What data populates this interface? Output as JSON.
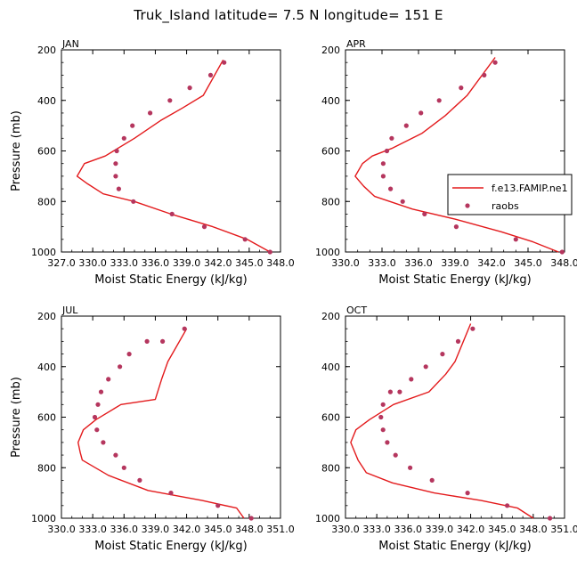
{
  "figure_title": "Truk_Island   latitude= 7.5 N longitude= 151 E",
  "colors": {
    "model": "#e31a1c",
    "obs": "#b5365e",
    "axis": "#000000"
  },
  "legend": {
    "model_label": "f.e13.FAMIP.ne1",
    "obs_label": "raobs",
    "placement": "right-of-top-right-panel"
  },
  "chart_data": [
    {
      "type": "line",
      "panel": "JAN",
      "title": "JAN",
      "xlabel": "Moist Static Energy (kJ/kg)",
      "ylabel": "Pressure (mb)",
      "xlim": [
        327.0,
        348.0
      ],
      "ylim": [
        1000,
        200
      ],
      "xticks": [
        327.0,
        330.0,
        333.0,
        336.0,
        339.0,
        342.0,
        345.0,
        348.0
      ],
      "xtick_labels": [
        "327.0",
        "330.0",
        "333.0",
        "336.0",
        "339.0",
        "342.0",
        "345.0",
        "348.0"
      ],
      "yticks": [
        200,
        400,
        600,
        800,
        1000
      ],
      "ytick_labels": [
        "200",
        "400",
        "600",
        "800",
        "1000"
      ],
      "series": [
        {
          "name": "f.e13.FAMIP.ne1",
          "style": "line",
          "x": [
            347.0,
            344.8,
            341.5,
            337.5,
            334.0,
            331.0,
            329.5,
            328.5,
            329.2,
            331.2,
            334.0,
            336.5,
            338.6,
            340.6,
            342.5
          ],
          "y": [
            1000,
            950,
            900,
            850,
            800,
            770,
            730,
            700,
            650,
            620,
            550,
            480,
            430,
            380,
            240
          ]
        },
        {
          "name": "raobs",
          "style": "markers",
          "x": [
            347.0,
            344.6,
            340.7,
            337.6,
            333.9,
            332.5,
            332.2,
            332.2,
            332.3,
            333.0,
            333.8,
            335.5,
            337.4,
            339.3,
            341.3,
            342.6
          ],
          "y": [
            1000,
            950,
            900,
            850,
            800,
            750,
            700,
            650,
            600,
            550,
            500,
            450,
            400,
            350,
            300,
            250
          ]
        }
      ]
    },
    {
      "type": "line",
      "panel": "APR",
      "title": "APR",
      "xlabel": "Moist Static Energy (kJ/kg)",
      "ylabel": "",
      "xlim": [
        330.0,
        348.0
      ],
      "ylim": [
        1000,
        200
      ],
      "xticks": [
        330.0,
        333.0,
        336.0,
        339.0,
        342.0,
        345.0,
        348.0
      ],
      "xtick_labels": [
        "330.0",
        "333.0",
        "336.0",
        "339.0",
        "342.0",
        "345.0",
        "348.0"
      ],
      "yticks": [
        200,
        400,
        600,
        800,
        1000
      ],
      "ytick_labels": [
        "200",
        "400",
        "600",
        "800",
        "1000"
      ],
      "series": [
        {
          "name": "f.e13.FAMIP.ne1",
          "style": "line",
          "x": [
            347.5,
            345.4,
            342.8,
            339.0,
            335.5,
            332.4,
            331.5,
            330.8,
            331.4,
            332.2,
            333.8,
            336.3,
            338.2,
            340.0,
            342.3
          ],
          "y": [
            1000,
            960,
            920,
            870,
            830,
            780,
            740,
            700,
            650,
            620,
            590,
            530,
            460,
            380,
            230
          ]
        },
        {
          "name": "raobs",
          "style": "markers",
          "x": [
            347.8,
            344.0,
            339.1,
            336.5,
            334.7,
            333.7,
            333.1,
            333.1,
            333.4,
            333.8,
            335.0,
            336.2,
            337.7,
            339.5,
            341.4,
            342.3
          ],
          "y": [
            1000,
            950,
            900,
            850,
            800,
            750,
            700,
            650,
            600,
            550,
            500,
            450,
            400,
            350,
            300,
            250
          ]
        }
      ]
    },
    {
      "type": "line",
      "panel": "JUL",
      "title": "JUL",
      "xlabel": "Moist Static Energy (kJ/kg)",
      "ylabel": "Pressure (mb)",
      "xlim": [
        330.0,
        351.0
      ],
      "ylim": [
        1000,
        200
      ],
      "xticks": [
        330.0,
        333.0,
        336.0,
        339.0,
        342.0,
        345.0,
        348.0,
        351.0
      ],
      "xtick_labels": [
        "330.0",
        "333.0",
        "336.0",
        "339.0",
        "342.0",
        "345.0",
        "348.0",
        "351.0"
      ],
      "yticks": [
        200,
        400,
        600,
        800,
        1000
      ],
      "ytick_labels": [
        "200",
        "400",
        "600",
        "800",
        "1000"
      ],
      "series": [
        {
          "name": "f.e13.FAMIP.ne1",
          "style": "line",
          "x": [
            347.5,
            346.8,
            343.5,
            338.3,
            334.5,
            332.0,
            331.8,
            331.6,
            332.1,
            333.3,
            335.7,
            339.0,
            339.6,
            340.2,
            342.0
          ],
          "y": [
            1000,
            960,
            930,
            890,
            830,
            770,
            740,
            700,
            650,
            610,
            550,
            530,
            450,
            380,
            250
          ]
        },
        {
          "name": "raobs",
          "style": "markers",
          "x": [
            348.2,
            345.0,
            340.5,
            337.5,
            336.0,
            335.2,
            334.0,
            333.4,
            333.2,
            333.5,
            333.8,
            334.5,
            335.6,
            336.5,
            338.2,
            339.7,
            341.8
          ],
          "y": [
            1000,
            950,
            900,
            850,
            800,
            750,
            700,
            650,
            600,
            550,
            500,
            450,
            400,
            350,
            300,
            300,
            250
          ]
        }
      ]
    },
    {
      "type": "line",
      "panel": "OCT",
      "title": "OCT",
      "xlabel": "Moist Static Energy (kJ/kg)",
      "ylabel": "",
      "xlim": [
        330.0,
        351.0
      ],
      "ylim": [
        1000,
        200
      ],
      "xticks": [
        330.0,
        333.0,
        336.0,
        339.0,
        342.0,
        345.0,
        348.0,
        351.0
      ],
      "xtick_labels": [
        "330.0",
        "333.0",
        "336.0",
        "339.0",
        "342.0",
        "345.0",
        "348.0",
        "351.0"
      ],
      "yticks": [
        200,
        400,
        600,
        800,
        1000
      ],
      "ytick_labels": [
        "200",
        "400",
        "600",
        "800",
        "1000"
      ],
      "series": [
        {
          "name": "f.e13.FAMIP.ne1",
          "style": "line",
          "x": [
            348.0,
            346.5,
            343.0,
            338.5,
            334.5,
            332.0,
            331.2,
            330.5,
            331.0,
            332.3,
            334.6,
            338.0,
            339.6,
            340.5,
            342.0
          ],
          "y": [
            1000,
            960,
            930,
            900,
            860,
            820,
            770,
            700,
            650,
            610,
            550,
            500,
            430,
            380,
            230
          ]
        },
        {
          "name": "raobs",
          "style": "markers",
          "x": [
            349.6,
            345.5,
            341.7,
            338.3,
            336.2,
            334.8,
            334.0,
            333.6,
            333.4,
            333.6,
            334.3,
            335.2,
            336.3,
            337.7,
            339.3,
            340.8,
            342.2
          ],
          "y": [
            1000,
            950,
            900,
            850,
            800,
            750,
            700,
            650,
            600,
            550,
            500,
            500,
            450,
            400,
            350,
            300,
            250
          ]
        }
      ]
    }
  ]
}
